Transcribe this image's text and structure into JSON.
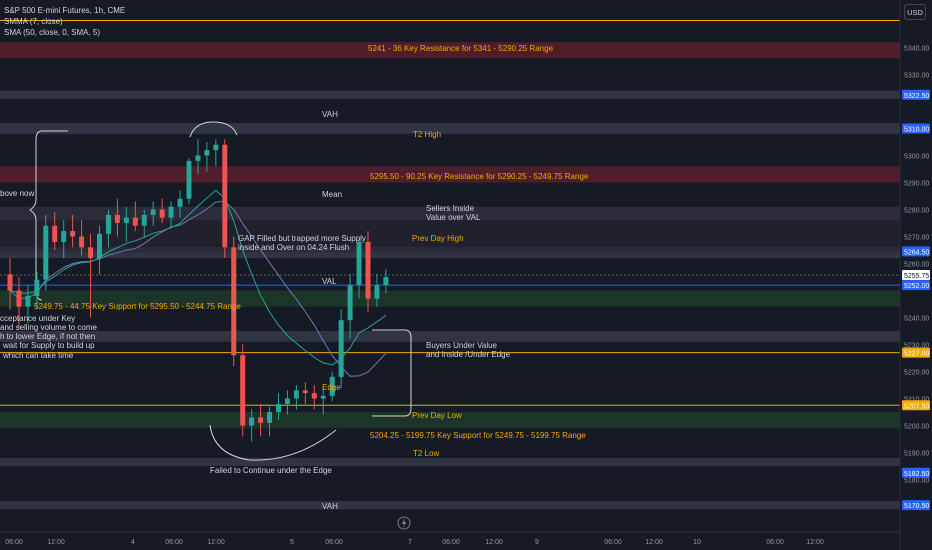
{
  "header": {
    "symbol": "S&P 500 E-mini Futures, 1h, CME",
    "indicator1": "SMMA (7, close)",
    "indicator2": "SMA (50, close, 0, SMA, 5)",
    "currency_button": "USD"
  },
  "chart_data": {
    "type": "candlestick",
    "title": "S&P 500 E-mini Futures, 1h, CME",
    "ylim": [
      5165,
      5348
    ],
    "y_ticks": [
      5340,
      5330,
      5300,
      5290,
      5280,
      5270,
      5260,
      5240,
      5230,
      5220,
      5210,
      5200,
      5190,
      5180
    ],
    "x_ticks": [
      "06:00",
      "12:00",
      "4",
      "06:00",
      "12:00",
      "5",
      "06:00",
      "7",
      "06:00",
      "12:00",
      "9",
      "06:00",
      "12:00",
      "10",
      "06:00",
      "12:00"
    ],
    "price_labels": [
      {
        "value": 5322.5,
        "text": "5322.50",
        "color": "#2962ff"
      },
      {
        "value": 5310.0,
        "text": "5310.00",
        "color": "#2962ff"
      },
      {
        "value": 5264.5,
        "text": "5264.50",
        "color": "#2962ff"
      },
      {
        "value": 5255.75,
        "text": "5255.75",
        "color": "#ffffff"
      },
      {
        "value": 5252.0,
        "text": "5252.00",
        "color": "#2962ff"
      },
      {
        "value": 5227.0,
        "text": "5227.00",
        "color": "#f2a900"
      },
      {
        "value": 5207.5,
        "text": "5207.50",
        "color": "#f2a900"
      },
      {
        "value": 5182.5,
        "text": "5182.50",
        "color": "#2962ff"
      },
      {
        "value": 5170.5,
        "text": "5170.50",
        "color": "#2962ff"
      }
    ],
    "zones": [
      {
        "from": 5336,
        "to": 5342,
        "color": "#5a1f2b"
      },
      {
        "from": 5290,
        "to": 5296,
        "color": "#5a1f2b"
      },
      {
        "from": 5244,
        "to": 5250,
        "color": "#1e3a2a"
      },
      {
        "from": 5199,
        "to": 5205,
        "color": "#1e3a2a"
      }
    ],
    "bands": [
      {
        "from": 5321,
        "to": 5324
      },
      {
        "from": 5308,
        "to": 5312
      },
      {
        "from": 5276,
        "to": 5281
      },
      {
        "from": 5262,
        "to": 5266
      },
      {
        "from": 5231,
        "to": 5235
      },
      {
        "from": 5185,
        "to": 5188
      },
      {
        "from": 5169,
        "to": 5172
      }
    ],
    "lines": [
      {
        "value": 5350,
        "color": "#f2a900"
      },
      {
        "value": 5227,
        "color": "#f2a900"
      },
      {
        "value": 5207.5,
        "color": "#f2a900"
      },
      {
        "value": 5252,
        "color": "#2962ff"
      },
      {
        "value": 5255.75,
        "color": "#5d606b"
      }
    ],
    "candles": [
      [
        5256,
        5262,
        5243,
        5250
      ],
      [
        5250,
        5255,
        5236,
        5244
      ],
      [
        5244,
        5252,
        5238,
        5248
      ],
      [
        5248,
        5257,
        5243,
        5254
      ],
      [
        5254,
        5278,
        5250,
        5274
      ],
      [
        5274,
        5279,
        5265,
        5268
      ],
      [
        5268,
        5276,
        5262,
        5272
      ],
      [
        5272,
        5278,
        5266,
        5270
      ],
      [
        5270,
        5276,
        5263,
        5266
      ],
      [
        5266,
        5271,
        5240,
        5262
      ],
      [
        5262,
        5274,
        5256,
        5271
      ],
      [
        5271,
        5280,
        5266,
        5278
      ],
      [
        5278,
        5284,
        5270,
        5275
      ],
      [
        5275,
        5281,
        5268,
        5277
      ],
      [
        5277,
        5283,
        5272,
        5274
      ],
      [
        5274,
        5280,
        5270,
        5278
      ],
      [
        5278,
        5283,
        5274,
        5280
      ],
      [
        5280,
        5284,
        5275,
        5277
      ],
      [
        5277,
        5283,
        5273,
        5281
      ],
      [
        5281,
        5287,
        5277,
        5284
      ],
      [
        5284,
        5299,
        5282,
        5298
      ],
      [
        5298,
        5306,
        5293,
        5300
      ],
      [
        5300,
        5305,
        5294,
        5302
      ],
      [
        5302,
        5306,
        5296,
        5304
      ],
      [
        5304,
        5306,
        5262,
        5266
      ],
      [
        5266,
        5270,
        5222,
        5226
      ],
      [
        5226,
        5230,
        5196,
        5200
      ],
      [
        5200,
        5206,
        5194,
        5203
      ],
      [
        5203,
        5208,
        5196,
        5201
      ],
      [
        5201,
        5207,
        5196,
        5205
      ],
      [
        5205,
        5212,
        5202,
        5208
      ],
      [
        5208,
        5213,
        5204,
        5210
      ],
      [
        5210,
        5215,
        5206,
        5213
      ],
      [
        5213,
        5216,
        5208,
        5212
      ],
      [
        5212,
        5215,
        5206,
        5210
      ],
      [
        5210,
        5214,
        5204,
        5211
      ],
      [
        5211,
        5220,
        5209,
        5218
      ],
      [
        5218,
        5243,
        5214,
        5239
      ],
      [
        5239,
        5256,
        5232,
        5252
      ],
      [
        5252,
        5269,
        5247,
        5268
      ],
      [
        5268,
        5272,
        5242,
        5247
      ],
      [
        5247,
        5256,
        5244,
        5252
      ],
      [
        5252,
        5258,
        5249,
        5255
      ]
    ],
    "annotations": [
      {
        "text": "5241 - 36 Key Resistance for 5341 - 5290.25 Range",
        "color": "#f2a900"
      },
      {
        "text": "VAH",
        "color": "#d1d4dc"
      },
      {
        "text": "T2 High",
        "color": "#f2a900"
      },
      {
        "text": "5295.50 - 90.25 Key Resistance for 5290.25 - 5249.75 Range",
        "color": "#f2a900"
      },
      {
        "text": "Mean",
        "color": "#d1d4dc"
      },
      {
        "text": "Sellers Inside",
        "color": "#d1d4dc"
      },
      {
        "text": "Value over VAL",
        "color": "#d1d4dc"
      },
      {
        "text": "Prev Day High",
        "color": "#f2a900"
      },
      {
        "text": "GAP Filled but trapped more Supply",
        "color": "#d1d4dc"
      },
      {
        "text": "inside and Over on 04.24 Flush",
        "color": "#d1d4dc"
      },
      {
        "text": "VAL",
        "color": "#d1d4dc"
      },
      {
        "text": "bove now",
        "color": "#d1d4dc"
      },
      {
        "text": "5249.75 - 44.75 Key Support for 5295.50 - 5244.75 Range",
        "color": "#f2a900"
      },
      {
        "text": "cceptance under Key",
        "color": "#d1d4dc"
      },
      {
        "text": "and selling volume to come",
        "color": "#d1d4dc"
      },
      {
        "text": "h to lower Edge, if not then",
        "color": "#d1d4dc"
      },
      {
        "text": "wait for Supply to build up",
        "color": "#d1d4dc"
      },
      {
        "text": "which can take time",
        "color": "#d1d4dc"
      },
      {
        "text": "Buyers Under Value",
        "color": "#d1d4dc"
      },
      {
        "text": "and Inside /Under Edge",
        "color": "#d1d4dc"
      },
      {
        "text": "Edge",
        "color": "#f2a900"
      },
      {
        "text": "Prev Day Low",
        "color": "#f2a900"
      },
      {
        "text": "5204.25 - 5199.75 Key Support for 5249.75 - 5199.75 Range",
        "color": "#f2a900"
      },
      {
        "text": "T2 Low",
        "color": "#f2a900"
      },
      {
        "text": "Failed to Continue under the Edge",
        "color": "#d1d4dc"
      },
      {
        "text": "VAH",
        "color": "#d1d4dc"
      }
    ],
    "colors": {
      "up": "#26a69a",
      "down": "#ef5350",
      "smma": "#26a69a",
      "sma": "#6b7bb8"
    }
  }
}
